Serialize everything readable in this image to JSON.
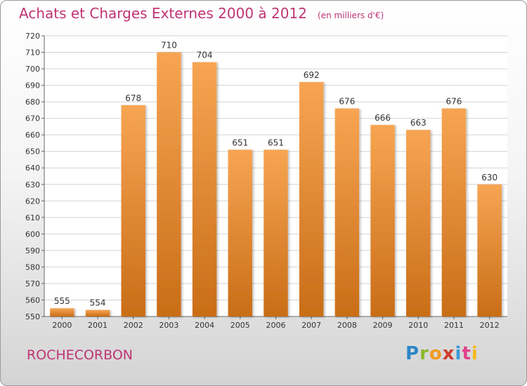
{
  "header": {
    "title": "Achats et Charges Externes 2000 à 2012",
    "subtitle": "(en milliers d'€)"
  },
  "footer": {
    "commune": "ROCHECORBON",
    "logo_text": "Proxiti"
  },
  "colors": {
    "bar_top": "#f7a553",
    "bar_bottom": "#c96d17",
    "title": "#c03474"
  },
  "chart_data": {
    "type": "bar",
    "title": "Achats et Charges Externes 2000 à 2012",
    "subtitle": "(en milliers d'€)",
    "categories": [
      "2000",
      "2001",
      "2002",
      "2003",
      "2004",
      "2005",
      "2006",
      "2007",
      "2008",
      "2009",
      "2010",
      "2011",
      "2012"
    ],
    "values": [
      555,
      554,
      678,
      710,
      704,
      651,
      651,
      692,
      676,
      666,
      663,
      676,
      630
    ],
    "ylim": [
      550,
      720
    ],
    "yticks": [
      550,
      560,
      570,
      580,
      590,
      600,
      610,
      620,
      630,
      640,
      650,
      660,
      670,
      680,
      690,
      700,
      710,
      720
    ],
    "grid": true,
    "legend": "none"
  }
}
